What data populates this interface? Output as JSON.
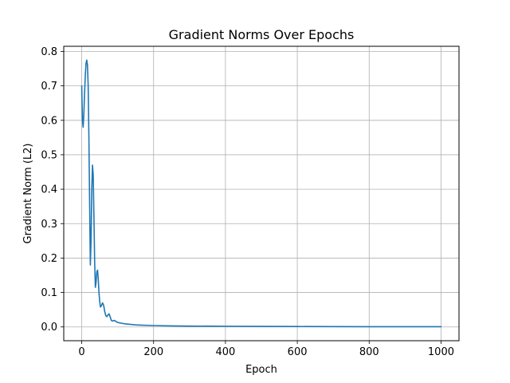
{
  "chart_data": {
    "type": "line",
    "title": "Gradient Norms Over Epochs",
    "xlabel": "Epoch",
    "ylabel": "Gradient Norm (L2)",
    "xlim": [
      -50,
      1050
    ],
    "ylim": [
      -0.04,
      0.815
    ],
    "xticks": [
      0,
      200,
      400,
      600,
      800,
      1000
    ],
    "yticks": [
      0.0,
      0.1,
      0.2,
      0.3,
      0.4,
      0.5,
      0.6,
      0.7,
      0.8
    ],
    "xtick_labels": [
      "0",
      "200",
      "400",
      "600",
      "800",
      "1000"
    ],
    "ytick_labels": [
      "0.0",
      "0.1",
      "0.2",
      "0.3",
      "0.4",
      "0.5",
      "0.6",
      "0.7",
      "0.8"
    ],
    "grid": true,
    "line_color": "#1f77b4",
    "series": [
      {
        "x": [
          0,
          2,
          4,
          6,
          8,
          10,
          12,
          14,
          16,
          18,
          20,
          22,
          24,
          26,
          28,
          30,
          32,
          34,
          36,
          38,
          40,
          42,
          44,
          46,
          48,
          50,
          52,
          55,
          58,
          61,
          64,
          67,
          70,
          73,
          76,
          79,
          82,
          85,
          88,
          91,
          95,
          100,
          105,
          110,
          120,
          130,
          140,
          150,
          170,
          200,
          250,
          300,
          400,
          500,
          600,
          700,
          800,
          900,
          1000
        ],
        "values": [
          0.7,
          0.6,
          0.58,
          0.62,
          0.68,
          0.73,
          0.765,
          0.775,
          0.76,
          0.7,
          0.55,
          0.36,
          0.18,
          0.25,
          0.4,
          0.47,
          0.44,
          0.32,
          0.19,
          0.115,
          0.13,
          0.16,
          0.165,
          0.14,
          0.1,
          0.075,
          0.058,
          0.062,
          0.07,
          0.063,
          0.045,
          0.033,
          0.03,
          0.035,
          0.038,
          0.03,
          0.02,
          0.017,
          0.018,
          0.019,
          0.016,
          0.013,
          0.012,
          0.011,
          0.009,
          0.008,
          0.007,
          0.006,
          0.005,
          0.004,
          0.003,
          0.0025,
          0.002,
          0.0015,
          0.0012,
          0.001,
          0.0008,
          0.0007,
          0.0006
        ]
      }
    ]
  }
}
